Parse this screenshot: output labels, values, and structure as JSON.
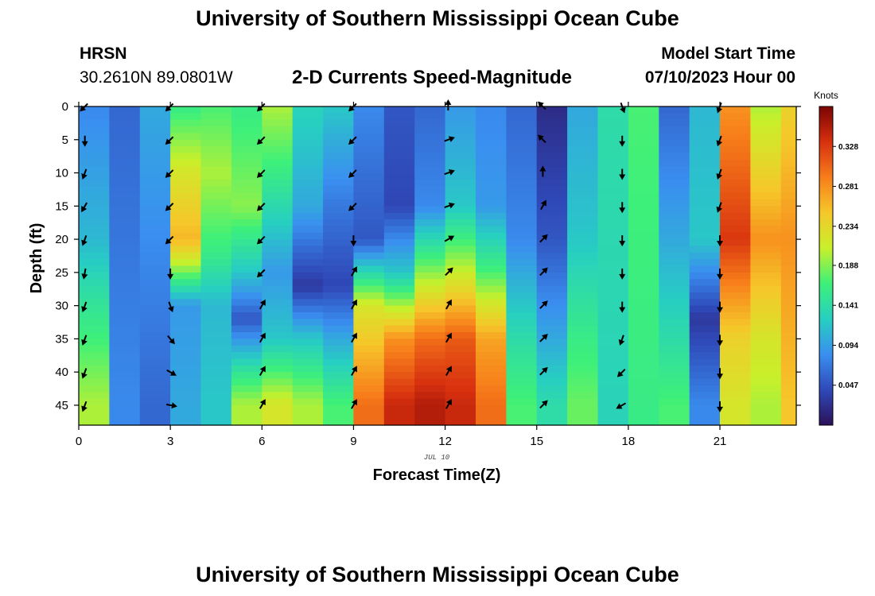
{
  "header": {
    "title": "University of Southern Mississippi Ocean Cube",
    "station": "HRSN",
    "coords": "30.2610N  89.0801W",
    "subtitle": "2-D Currents Speed-Magnitude",
    "model_start_label": "Model Start Time",
    "model_start_value": "07/10/2023 Hour 00",
    "footer_title": "University of Southern Mississippi Ocean Cube"
  },
  "chart_data": {
    "type": "heatmap",
    "xlabel": "Forecast Time(Z)",
    "ylabel": "Depth (ft)",
    "x_ticks": [
      0,
      3,
      6,
      9,
      12,
      15,
      18,
      21
    ],
    "y_ticks": [
      0,
      5,
      10,
      15,
      20,
      25,
      30,
      35,
      40,
      45
    ],
    "xlim": [
      0,
      23.5
    ],
    "ylim": [
      0,
      48
    ],
    "date_label": "JUL 10",
    "colorbar": {
      "label": "Knots",
      "range": [
        0,
        0.375
      ],
      "ticks": [
        "0.328",
        "0.281",
        "0.234",
        "0.188",
        "0.141",
        "0.094",
        "0.047"
      ],
      "colors": [
        "#2b1158",
        "#2f49b8",
        "#3a8ff0",
        "#27cfc1",
        "#3df07a",
        "#c8f02a",
        "#f6c72a",
        "#f77d1a",
        "#d7300f",
        "#7a0403"
      ]
    },
    "speed_profiles": [
      {
        "hour": 0,
        "speeds": [
          [
            0,
            0.08
          ],
          [
            20,
            0.11
          ],
          [
            30,
            0.15
          ],
          [
            45,
            0.2
          ]
        ]
      },
      {
        "hour": 1,
        "speeds": [
          [
            0,
            0.06
          ],
          [
            45,
            0.08
          ]
        ]
      },
      {
        "hour": 2,
        "speeds": [
          [
            0,
            0.1
          ],
          [
            45,
            0.06
          ]
        ]
      },
      {
        "hour": 3,
        "speeds": [
          [
            0,
            0.16
          ],
          [
            10,
            0.22
          ],
          [
            20,
            0.26
          ],
          [
            24,
            0.2
          ],
          [
            30,
            0.09
          ],
          [
            45,
            0.1
          ]
        ]
      },
      {
        "hour": 4,
        "speeds": [
          [
            0,
            0.17
          ],
          [
            10,
            0.2
          ],
          [
            22,
            0.16
          ],
          [
            30,
            0.11
          ],
          [
            45,
            0.12
          ]
        ]
      },
      {
        "hour": 5,
        "speeds": [
          [
            0,
            0.16
          ],
          [
            15,
            0.19
          ],
          [
            25,
            0.12
          ],
          [
            32,
            0.05
          ],
          [
            40,
            0.15
          ],
          [
            45,
            0.2
          ]
        ]
      },
      {
        "hour": 6,
        "speeds": [
          [
            0,
            0.2
          ],
          [
            10,
            0.16
          ],
          [
            25,
            0.09
          ],
          [
            35,
            0.12
          ],
          [
            45,
            0.22
          ]
        ]
      },
      {
        "hour": 7,
        "speeds": [
          [
            0,
            0.13
          ],
          [
            15,
            0.1
          ],
          [
            27,
            0.03
          ],
          [
            35,
            0.12
          ],
          [
            45,
            0.2
          ]
        ]
      },
      {
        "hour": 8,
        "speeds": [
          [
            0,
            0.12
          ],
          [
            15,
            0.07
          ],
          [
            27,
            0.04
          ],
          [
            35,
            0.1
          ],
          [
            45,
            0.17
          ]
        ]
      },
      {
        "hour": 9,
        "speeds": [
          [
            0,
            0.08
          ],
          [
            20,
            0.05
          ],
          [
            30,
            0.22
          ],
          [
            45,
            0.3
          ]
        ]
      },
      {
        "hour": 10,
        "speeds": [
          [
            0,
            0.05
          ],
          [
            15,
            0.04
          ],
          [
            25,
            0.12
          ],
          [
            35,
            0.28
          ],
          [
            45,
            0.34
          ]
        ]
      },
      {
        "hour": 11,
        "speeds": [
          [
            0,
            0.06
          ],
          [
            15,
            0.08
          ],
          [
            25,
            0.19
          ],
          [
            35,
            0.3
          ],
          [
            45,
            0.35
          ]
        ]
      },
      {
        "hour": 12,
        "speeds": [
          [
            0,
            0.09
          ],
          [
            15,
            0.12
          ],
          [
            25,
            0.21
          ],
          [
            35,
            0.31
          ],
          [
            45,
            0.34
          ]
        ]
      },
      {
        "hour": 13,
        "speeds": [
          [
            0,
            0.08
          ],
          [
            15,
            0.09
          ],
          [
            25,
            0.17
          ],
          [
            35,
            0.27
          ],
          [
            45,
            0.3
          ]
        ]
      },
      {
        "hour": 14,
        "speeds": [
          [
            0,
            0.06
          ],
          [
            20,
            0.08
          ],
          [
            35,
            0.14
          ],
          [
            45,
            0.17
          ]
        ]
      },
      {
        "hour": 15,
        "speeds": [
          [
            0,
            0.02
          ],
          [
            20,
            0.05
          ],
          [
            35,
            0.1
          ],
          [
            45,
            0.14
          ]
        ]
      },
      {
        "hour": 16,
        "speeds": [
          [
            0,
            0.1
          ],
          [
            20,
            0.12
          ],
          [
            35,
            0.16
          ],
          [
            45,
            0.18
          ]
        ]
      },
      {
        "hour": 17,
        "speeds": [
          [
            0,
            0.14
          ],
          [
            45,
            0.13
          ]
        ]
      },
      {
        "hour": 18,
        "speeds": [
          [
            0,
            0.17
          ],
          [
            45,
            0.16
          ]
        ]
      },
      {
        "hour": 19,
        "speeds": [
          [
            0,
            0.06
          ],
          [
            20,
            0.1
          ],
          [
            35,
            0.14
          ],
          [
            45,
            0.17
          ]
        ]
      },
      {
        "hour": 20,
        "speeds": [
          [
            0,
            0.11
          ],
          [
            20,
            0.12
          ],
          [
            32,
            0.03
          ],
          [
            40,
            0.06
          ],
          [
            45,
            0.08
          ]
        ]
      },
      {
        "hour": 21,
        "speeds": [
          [
            0,
            0.28
          ],
          [
            20,
            0.33
          ],
          [
            35,
            0.24
          ],
          [
            45,
            0.22
          ]
        ]
      },
      {
        "hour": 22,
        "speeds": [
          [
            0,
            0.2
          ],
          [
            20,
            0.28
          ],
          [
            35,
            0.22
          ],
          [
            45,
            0.2
          ]
        ]
      },
      {
        "hour": 23,
        "speeds": [
          [
            0,
            0.24
          ],
          [
            20,
            0.28
          ],
          [
            45,
            0.25
          ]
        ]
      }
    ],
    "vectors": [
      {
        "hour": 0.2,
        "dirs": [
          [
            0,
            225
          ],
          [
            5,
            270
          ],
          [
            10,
            250
          ],
          [
            15,
            240
          ],
          [
            20,
            250
          ],
          [
            25,
            260
          ],
          [
            30,
            250
          ],
          [
            35,
            250
          ],
          [
            40,
            250
          ],
          [
            45,
            250
          ]
        ]
      },
      {
        "hour": 3.0,
        "dirs": [
          [
            0,
            225
          ],
          [
            5,
            225
          ],
          [
            10,
            225
          ],
          [
            15,
            225
          ],
          [
            20,
            225
          ],
          [
            25,
            270
          ],
          [
            30,
            290
          ],
          [
            35,
            310
          ],
          [
            40,
            330
          ],
          [
            45,
            350
          ]
        ]
      },
      {
        "hour": 6.0,
        "dirs": [
          [
            0,
            225
          ],
          [
            5,
            225
          ],
          [
            10,
            225
          ],
          [
            15,
            225
          ],
          [
            20,
            225
          ],
          [
            25,
            225
          ],
          [
            30,
            60
          ],
          [
            35,
            60
          ],
          [
            40,
            60
          ],
          [
            45,
            60
          ]
        ]
      },
      {
        "hour": 9.0,
        "dirs": [
          [
            0,
            225
          ],
          [
            5,
            225
          ],
          [
            10,
            225
          ],
          [
            15,
            225
          ],
          [
            20,
            270
          ],
          [
            25,
            60
          ],
          [
            30,
            60
          ],
          [
            35,
            60
          ],
          [
            40,
            60
          ],
          [
            45,
            60
          ]
        ]
      },
      {
        "hour": 12.1,
        "dirs": [
          [
            0,
            90
          ],
          [
            5,
            20
          ],
          [
            10,
            20
          ],
          [
            15,
            20
          ],
          [
            20,
            30
          ],
          [
            25,
            45
          ],
          [
            30,
            60
          ],
          [
            35,
            60
          ],
          [
            40,
            60
          ],
          [
            45,
            60
          ]
        ]
      },
      {
        "hour": 15.2,
        "dirs": [
          [
            0,
            135
          ],
          [
            5,
            135
          ],
          [
            10,
            90
          ],
          [
            15,
            60
          ],
          [
            20,
            45
          ],
          [
            25,
            45
          ],
          [
            30,
            45
          ],
          [
            35,
            45
          ],
          [
            40,
            45
          ],
          [
            45,
            45
          ]
        ]
      },
      {
        "hour": 17.8,
        "dirs": [
          [
            0,
            290
          ],
          [
            5,
            270
          ],
          [
            10,
            270
          ],
          [
            15,
            270
          ],
          [
            20,
            270
          ],
          [
            25,
            270
          ],
          [
            30,
            270
          ],
          [
            35,
            250
          ],
          [
            40,
            225
          ],
          [
            45,
            210
          ]
        ]
      },
      {
        "hour": 21.0,
        "dirs": [
          [
            0,
            250
          ],
          [
            5,
            250
          ],
          [
            10,
            250
          ],
          [
            15,
            250
          ],
          [
            20,
            270
          ],
          [
            25,
            270
          ],
          [
            30,
            270
          ],
          [
            35,
            270
          ],
          [
            40,
            270
          ],
          [
            45,
            270
          ]
        ]
      }
    ]
  }
}
